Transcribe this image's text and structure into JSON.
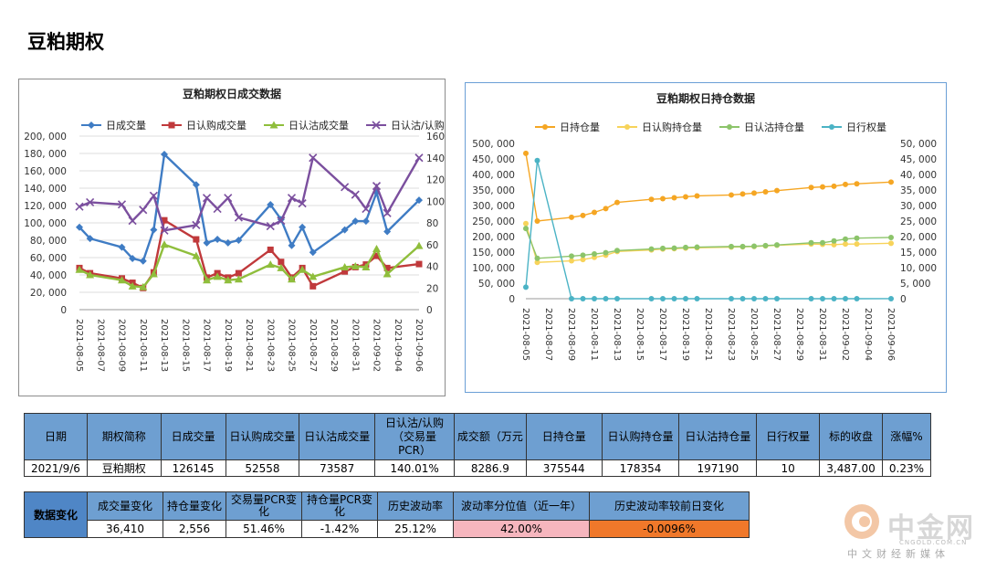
{
  "page": {
    "title": "豆粕期权"
  },
  "chart_data": [
    {
      "type": "line",
      "title": "豆粕期权日成交数据",
      "categories": [
        "2021-08-05",
        "2021-08-06",
        "2021-08-09",
        "2021-08-10",
        "2021-08-11",
        "2021-08-12",
        "2021-08-13",
        "2021-08-16",
        "2021-08-17",
        "2021-08-18",
        "2021-08-19",
        "2021-08-20",
        "2021-08-23",
        "2021-08-24",
        "2021-08-25",
        "2021-08-26",
        "2021-08-27",
        "2021-08-30",
        "2021-08-31",
        "2021-09-01",
        "2021-09-02",
        "2021-09-03",
        "2021-09-06"
      ],
      "x_tick_labels": [
        "2021-08-05",
        "2021-08-07",
        "2021-08-09",
        "2021-08-11",
        "2021-08-13",
        "2021-08-15",
        "2021-08-17",
        "2021-08-19",
        "2021-08-21",
        "2021-08-23",
        "2021-08-25",
        "2021-08-27",
        "2021-08-29",
        "2021-08-31",
        "2021-09-02",
        "2021-09-04",
        "2021-09-06"
      ],
      "left_axis": {
        "min": 0,
        "max": 200000,
        "ticks": [
          "0",
          "20, 000",
          "40, 000",
          "60, 000",
          "80, 000",
          "100, 000",
          "120, 000",
          "140, 000",
          "160, 000",
          "180, 000",
          "200, 000"
        ]
      },
      "right_axis": {
        "min": 0,
        "max": 160,
        "ticks": [
          "0",
          "20",
          "40",
          "60",
          "80",
          "100",
          "120",
          "140",
          "160"
        ]
      },
      "series": [
        {
          "name": "日成交量",
          "axis": "left",
          "color": "#3f7cc4",
          "marker": "diamond",
          "values": [
            95000,
            82000,
            72000,
            59000,
            56000,
            92000,
            179000,
            144000,
            77000,
            81000,
            77000,
            80000,
            121000,
            104000,
            74000,
            95000,
            66000,
            92000,
            102000,
            102000,
            135000,
            90000,
            126145
          ]
        },
        {
          "name": "日认购成交量",
          "axis": "left",
          "color": "#c0393b",
          "marker": "square",
          "values": [
            48000,
            42000,
            36000,
            31000,
            25000,
            43000,
            103000,
            81000,
            37000,
            42000,
            37000,
            42000,
            69000,
            55000,
            37000,
            48000,
            27000,
            44000,
            49000,
            52000,
            62000,
            48000,
            52558
          ]
        },
        {
          "name": "日认沽成交量",
          "axis": "left",
          "color": "#8fbe3c",
          "marker": "triangle",
          "values": [
            46000,
            40000,
            34000,
            27000,
            26000,
            41000,
            75000,
            62000,
            34000,
            38000,
            34000,
            35000,
            52000,
            48000,
            35000,
            46000,
            38000,
            49000,
            50000,
            49000,
            70000,
            41000,
            73587
          ]
        },
        {
          "name": "日认沽/认购",
          "axis": "right",
          "color": "#7b4f9e",
          "marker": "x",
          "values": [
            95,
            99,
            97,
            82,
            92,
            105,
            73,
            78,
            103,
            93,
            103,
            85,
            77,
            82,
            103,
            98,
            140,
            113,
            106,
            93,
            114,
            89,
            140
          ]
        }
      ]
    },
    {
      "type": "line",
      "title": "豆粕期权日持仓数据",
      "categories": [
        "2021-08-05",
        "2021-08-06",
        "2021-08-09",
        "2021-08-10",
        "2021-08-11",
        "2021-08-12",
        "2021-08-13",
        "2021-08-16",
        "2021-08-17",
        "2021-08-18",
        "2021-08-19",
        "2021-08-20",
        "2021-08-23",
        "2021-08-24",
        "2021-08-25",
        "2021-08-26",
        "2021-08-27",
        "2021-08-30",
        "2021-08-31",
        "2021-09-01",
        "2021-09-02",
        "2021-09-03",
        "2021-09-06"
      ],
      "x_tick_labels": [
        "2021-08-05",
        "2021-08-07",
        "2021-08-09",
        "2021-08-11",
        "2021-08-13",
        "2021-08-15",
        "2021-08-17",
        "2021-08-19",
        "2021-08-21",
        "2021-08-23",
        "2021-08-25",
        "2021-08-27",
        "2021-08-29",
        "2021-08-31",
        "2021-09-02",
        "2021-09-04",
        "2021-09-06"
      ],
      "left_axis": {
        "min": 0,
        "max": 500000,
        "ticks": [
          "0",
          "50, 000",
          "100, 000",
          "150, 000",
          "200, 000",
          "250, 000",
          "300, 000",
          "350, 000",
          "400, 000",
          "450, 000",
          "500, 000"
        ]
      },
      "right_axis": {
        "min": 0,
        "max": 50000,
        "ticks": [
          "0",
          "5, 000",
          "10, 000",
          "15, 000",
          "20, 000",
          "25, 000",
          "30, 000",
          "35, 000",
          "40, 000",
          "45, 000",
          "50, 000"
        ]
      },
      "series": [
        {
          "name": "日持仓量",
          "axis": "left",
          "color": "#f5a623",
          "values": [
            468000,
            250000,
            262000,
            268000,
            278000,
            290000,
            310000,
            320000,
            322000,
            325000,
            328000,
            331000,
            334000,
            337000,
            340000,
            344000,
            348000,
            358000,
            360000,
            362000,
            368000,
            370000,
            375544
          ]
        },
        {
          "name": "日认购持仓量",
          "axis": "left",
          "color": "#f7d35a",
          "values": [
            242000,
            117000,
            122000,
            126000,
            133000,
            140000,
            152000,
            157000,
            160000,
            161000,
            163000,
            164000,
            166000,
            167000,
            168000,
            170000,
            172000,
            176000,
            175000,
            174000,
            176000,
            176000,
            178354
          ]
        },
        {
          "name": "日认沽持仓量",
          "axis": "left",
          "color": "#8cc46a",
          "values": [
            226000,
            130000,
            137000,
            140000,
            144000,
            148000,
            155000,
            160000,
            162000,
            163000,
            165000,
            166000,
            168000,
            168000,
            169000,
            171000,
            173000,
            180000,
            180000,
            186000,
            192000,
            195000,
            197190
          ]
        },
        {
          "name": "日行权量",
          "axis": "right",
          "color": "#4bb3c5",
          "values": [
            3700,
            44500,
            0,
            0,
            0,
            0,
            0,
            0,
            0,
            0,
            0,
            0,
            0,
            0,
            0,
            0,
            0,
            0,
            0,
            0,
            0,
            0,
            10
          ]
        }
      ]
    }
  ],
  "table1": {
    "headers": [
      "日期",
      "期权简称",
      "日成交量",
      "日认购成交量",
      "日认沽成交量",
      "日认沽/认购（交易量PCR）",
      "成交额（万元）",
      "日持仓量",
      "日认购持仓量",
      "日认沽持仓量",
      "日行权量",
      "标的收盘",
      "涨幅%"
    ],
    "header_lines": [
      [
        "日期"
      ],
      [
        "期权简称"
      ],
      [
        "日成交量"
      ],
      [
        "日认购成交量"
      ],
      [
        "日认沽成交量"
      ],
      [
        "日认沽/认购",
        "（交易量",
        "PCR）"
      ],
      [
        "成交额（万元"
      ],
      [
        "日持仓量"
      ],
      [
        "日认购持仓量"
      ],
      [
        "日认沽持仓量"
      ],
      [
        "日行权量"
      ],
      [
        "标的收盘"
      ],
      [
        "涨幅%"
      ]
    ],
    "row": [
      "2021/9/6",
      "豆粕期权",
      "126145",
      "52558",
      "73587",
      "140.01%",
      "8286.9",
      "375544",
      "178354",
      "197190",
      "10",
      "3,487.00",
      "0.23%"
    ]
  },
  "table2": {
    "row_label": "数据变化",
    "headers": [
      "成交量变化",
      "持仓量变化",
      "交易量PCR变化",
      "持仓量PCR变化",
      "历史波动率",
      "波动率分位值（近一年）",
      "历史波动率较前日变化"
    ],
    "row": [
      "36,410",
      "2,556",
      "51.46%",
      "-1.42%",
      "25.12%",
      "42.00%",
      "-0.0096%"
    ]
  },
  "logo": {
    "name": "中金网",
    "url": "CNGOLD.COM.CN",
    "tagline": "中文财经新媒体"
  }
}
